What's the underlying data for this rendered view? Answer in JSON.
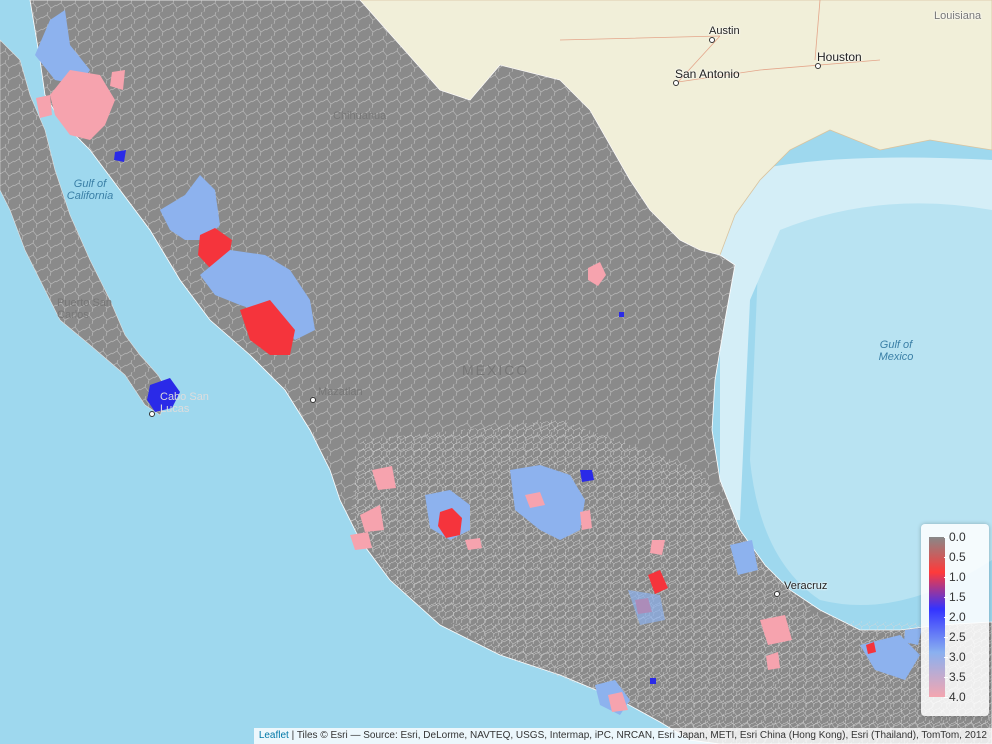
{
  "legend": {
    "ticks": [
      "0.0",
      "0.5",
      "1.0",
      "1.5",
      "2.0",
      "2.5",
      "3.0",
      "3.5",
      "4.0"
    ],
    "colors": [
      "#888888",
      "#ff3a3a",
      "#3333ff",
      "#8ab0f0",
      "#f4a6b0"
    ]
  },
  "places": {
    "austin": "Austin",
    "houston": "Houston",
    "san_antonio": "San Antonio",
    "louisiana": "Louisiana",
    "veracruz": "Veracruz",
    "cabo": "Cabo San Lucas",
    "puerto": "Puerto San Carlos",
    "mazatlan": "Mazatlan",
    "chihuahua": "Chihuahua",
    "mexico": "MEXICO"
  },
  "water": {
    "gulf_california": "Gulf of California",
    "gulf_mexico": "Gulf of Mexico"
  },
  "attribution": {
    "leaflet": "Leaflet",
    "tiles": " | Tiles © Esri — Source: Esri, DeLorme, NAVTEQ, USGS, Intermap, iPC, NRCAN, Esri Japan, METI, Esri China (Hong Kong), Esri (Thailand), TomTom, 2012"
  },
  "colors": {
    "ocean": "#9ed8ee",
    "land_us": "#f1efd9",
    "mexico_fill": "#8a8a8a",
    "red": "#f5343c",
    "blue": "#2a2ae8",
    "light_blue": "#8db2ee",
    "pink": "#f6a3ae"
  }
}
